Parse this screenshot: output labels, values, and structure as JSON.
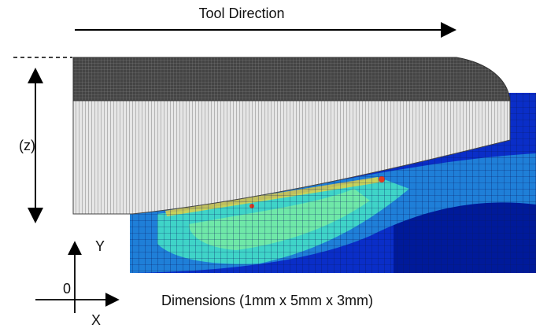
{
  "title": "Tool Direction",
  "z_label": "(z)",
  "axes": {
    "y": "Y",
    "origin": "0",
    "x": "X"
  },
  "caption": "Dimensions (1mm x 5mm x 3mm)"
}
